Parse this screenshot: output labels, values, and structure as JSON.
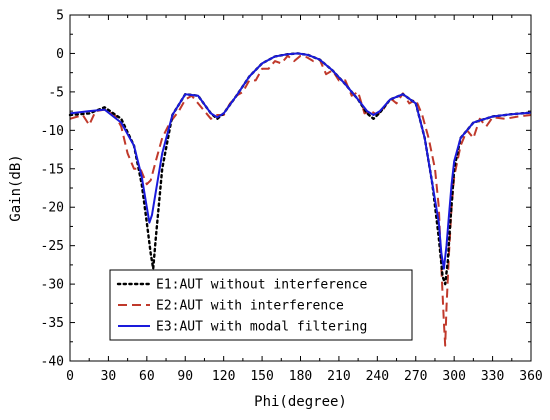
{
  "chart_data": {
    "type": "line",
    "xlabel": "Phi(degree)",
    "ylabel": "Gain(dB)",
    "xlim": [
      0,
      360
    ],
    "ylim": [
      -40,
      5
    ],
    "x_ticks": [
      0,
      30,
      60,
      90,
      120,
      150,
      180,
      210,
      240,
      270,
      300,
      330,
      360
    ],
    "y_ticks": [
      5,
      0,
      -5,
      -10,
      -15,
      -20,
      -25,
      -30,
      -35,
      -40
    ],
    "x_tick_labels": [
      "0",
      "30",
      "60",
      "90",
      "120",
      "150",
      "180",
      "210",
      "240",
      "270",
      "300",
      "330",
      "360"
    ],
    "y_tick_labels": [
      "5",
      "0",
      "-5",
      "-10",
      "-15",
      "-20",
      "-25",
      "-30",
      "-35",
      "-40"
    ],
    "grid": false,
    "legend_position": "bottom-left",
    "series": [
      {
        "name": "E1:AUT without interference",
        "color": "#000000",
        "style": "dotted",
        "x": [
          0,
          15,
          27,
          40,
          50,
          56,
          60,
          63,
          65,
          67,
          72,
          80,
          90,
          100,
          110,
          115,
          120,
          130,
          140,
          150,
          160,
          170,
          178,
          186,
          195,
          205,
          215,
          225,
          232,
          237,
          242,
          250,
          260,
          270,
          277,
          283,
          288,
          291,
          293,
          295,
          297,
          300,
          305,
          315,
          330,
          345,
          360
        ],
        "y": [
          -8,
          -7.8,
          -7,
          -8.5,
          -12,
          -17,
          -22,
          -26,
          -28,
          -24,
          -15,
          -8,
          -5.3,
          -5.5,
          -7.8,
          -8.5,
          -7.8,
          -5.5,
          -3,
          -1.3,
          -0.4,
          -0.1,
          0,
          -0.2,
          -0.8,
          -2.2,
          -4,
          -6,
          -7.8,
          -8.5,
          -7.7,
          -6,
          -5.3,
          -6.5,
          -11,
          -17,
          -24,
          -29,
          -30,
          -27,
          -22,
          -15,
          -11,
          -9,
          -8.2,
          -7.9,
          -7.7
        ]
      },
      {
        "name": "E2:AUT with interference",
        "color": "#c0392b",
        "style": "dashed",
        "x": [
          0,
          10,
          15,
          20,
          27,
          35,
          40,
          45,
          50,
          55,
          60,
          63,
          67,
          72,
          78,
          85,
          90,
          95,
          100,
          105,
          110,
          115,
          120,
          125,
          130,
          135,
          140,
          145,
          150,
          155,
          160,
          165,
          170,
          175,
          180,
          185,
          190,
          195,
          200,
          205,
          210,
          215,
          220,
          225,
          230,
          235,
          240,
          245,
          250,
          255,
          260,
          265,
          270,
          275,
          280,
          285,
          288,
          290,
          292,
          293,
          294,
          296,
          298,
          300,
          305,
          310,
          315,
          320,
          325,
          330,
          340,
          350,
          360
        ],
        "y": [
          -8.5,
          -8,
          -9.3,
          -7.5,
          -7.3,
          -8,
          -9.5,
          -13,
          -15,
          -15,
          -17,
          -16.5,
          -14,
          -11,
          -9,
          -7.5,
          -6,
          -5.5,
          -6.5,
          -7.5,
          -8.5,
          -8,
          -8,
          -6.5,
          -5.5,
          -5,
          -3.5,
          -3.5,
          -2,
          -2,
          -1,
          -1.3,
          -0.3,
          -1,
          -0.3,
          -0.5,
          -1,
          -0.8,
          -2.7,
          -2.2,
          -3.5,
          -3.5,
          -5.5,
          -5,
          -7.8,
          -7.5,
          -8,
          -7.2,
          -5.8,
          -6.5,
          -5.2,
          -6.5,
          -6,
          -8,
          -11,
          -15,
          -20,
          -28,
          -35,
          -38,
          -33,
          -26,
          -20,
          -16,
          -12,
          -10,
          -11,
          -8.5,
          -9.5,
          -8.3,
          -8.5,
          -8.2,
          -8
        ]
      },
      {
        "name": "E3:AUT with modal filtering",
        "color": "#1a1adb",
        "style": "solid",
        "x": [
          0,
          15,
          27,
          40,
          50,
          56,
          60,
          62,
          64,
          67,
          72,
          80,
          90,
          100,
          110,
          115,
          120,
          130,
          140,
          150,
          160,
          170,
          178,
          186,
          195,
          205,
          215,
          225,
          232,
          237,
          242,
          250,
          260,
          270,
          277,
          283,
          288,
          290,
          292,
          294,
          296,
          298,
          300,
          305,
          315,
          330,
          345,
          360
        ],
        "y": [
          -7.8,
          -7.5,
          -7.3,
          -9,
          -12,
          -16,
          -20,
          -22,
          -21,
          -18,
          -13,
          -8,
          -5.3,
          -5.5,
          -7.8,
          -8.3,
          -7.8,
          -5.5,
          -3,
          -1.3,
          -0.4,
          -0.1,
          0,
          -0.2,
          -0.8,
          -2.2,
          -4,
          -6,
          -7.5,
          -8,
          -7.5,
          -6,
          -5.3,
          -6.5,
          -11,
          -17,
          -22,
          -26,
          -28,
          -25,
          -21,
          -17,
          -14,
          -11,
          -9,
          -8.2,
          -7.9,
          -7.7
        ]
      }
    ]
  }
}
